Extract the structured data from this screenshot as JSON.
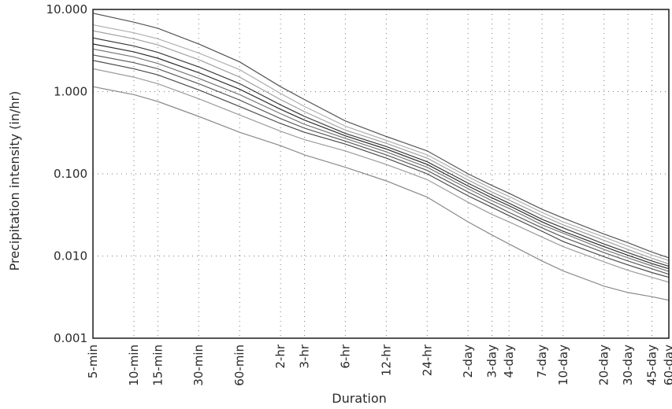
{
  "chart_data": {
    "type": "line",
    "xlabel": "Duration",
    "ylabel": "Precipitation intensity (in/hr)",
    "y_scale": "log",
    "ylim": [
      0.001,
      10.0
    ],
    "yticks": [
      "0.001",
      "0.010",
      "0.100",
      "1.000",
      "10.000"
    ],
    "grid": true,
    "categories": [
      "5-min",
      "10-min",
      "15-min",
      "30-min",
      "60-min",
      "2-hr",
      "3-hr",
      "6-hr",
      "12-hr",
      "24-hr",
      "2-day",
      "3-day",
      "4-day",
      "7-day",
      "10-day",
      "20-day",
      "30-day",
      "45-day",
      "60-day"
    ],
    "x_minutes": [
      5,
      10,
      15,
      30,
      60,
      120,
      180,
      360,
      720,
      1440,
      2880,
      4320,
      5760,
      10080,
      14400,
      28800,
      43200,
      64800,
      86400
    ],
    "series": [
      {
        "values": [
          1.15,
          0.92,
          0.76,
          0.5,
          0.32,
          0.22,
          0.17,
          0.12,
          0.082,
          0.052,
          0.026,
          0.018,
          0.014,
          0.0087,
          0.0066,
          0.0043,
          0.0036,
          0.0032,
          0.0029
        ],
        "color": "#8a8a8a"
      },
      {
        "values": [
          1.9,
          1.5,
          1.25,
          0.82,
          0.52,
          0.33,
          0.26,
          0.19,
          0.13,
          0.085,
          0.045,
          0.032,
          0.026,
          0.017,
          0.013,
          0.0085,
          0.0067,
          0.0055,
          0.0048
        ],
        "color": "#9a9a9a"
      },
      {
        "values": [
          2.4,
          1.9,
          1.6,
          1.05,
          0.66,
          0.41,
          0.32,
          0.23,
          0.155,
          0.1,
          0.054,
          0.039,
          0.031,
          0.02,
          0.015,
          0.0098,
          0.0078,
          0.0063,
          0.0055
        ],
        "color": "#4a4a4a"
      },
      {
        "values": [
          2.8,
          2.25,
          1.9,
          1.25,
          0.79,
          0.47,
          0.36,
          0.25,
          0.17,
          0.11,
          0.06,
          0.043,
          0.034,
          0.022,
          0.017,
          0.011,
          0.0087,
          0.007,
          0.006
        ],
        "color": "#5a5a5a"
      },
      {
        "values": [
          3.3,
          2.65,
          2.2,
          1.45,
          0.92,
          0.54,
          0.4,
          0.27,
          0.185,
          0.12,
          0.066,
          0.047,
          0.038,
          0.024,
          0.019,
          0.012,
          0.0095,
          0.0076,
          0.0065
        ],
        "color": "#777777"
      },
      {
        "values": [
          3.8,
          3.05,
          2.55,
          1.7,
          1.07,
          0.61,
          0.45,
          0.29,
          0.2,
          0.13,
          0.071,
          0.051,
          0.041,
          0.026,
          0.02,
          0.013,
          0.0102,
          0.0081,
          0.007
        ],
        "color": "#2e2e2e"
      },
      {
        "values": [
          4.5,
          3.6,
          3.0,
          2.0,
          1.25,
          0.69,
          0.5,
          0.31,
          0.215,
          0.14,
          0.077,
          0.055,
          0.044,
          0.028,
          0.022,
          0.014,
          0.011,
          0.0087,
          0.0075
        ],
        "color": "#3a3a3a"
      },
      {
        "values": [
          5.5,
          4.4,
          3.7,
          2.45,
          1.5,
          0.8,
          0.57,
          0.34,
          0.235,
          0.155,
          0.084,
          0.06,
          0.048,
          0.031,
          0.024,
          0.0155,
          0.012,
          0.0094,
          0.008
        ],
        "color": "#a0a0a0"
      },
      {
        "values": [
          6.5,
          5.2,
          4.4,
          2.95,
          1.85,
          0.95,
          0.66,
          0.38,
          0.255,
          0.17,
          0.092,
          0.066,
          0.053,
          0.034,
          0.026,
          0.017,
          0.0132,
          0.0103,
          0.0088
        ],
        "color": "#b0b0b0"
      },
      {
        "values": [
          9.0,
          7.0,
          5.9,
          3.8,
          2.3,
          1.15,
          0.8,
          0.44,
          0.285,
          0.19,
          0.1,
          0.072,
          0.058,
          0.037,
          0.029,
          0.0185,
          0.0145,
          0.0112,
          0.0095
        ],
        "color": "#555555"
      }
    ]
  }
}
